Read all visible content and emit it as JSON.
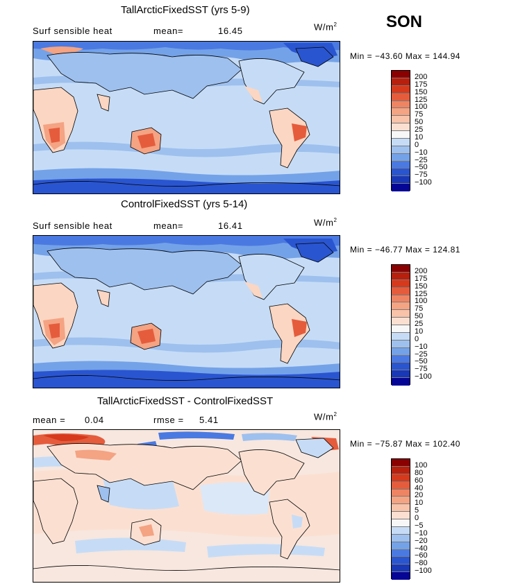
{
  "season": "SON",
  "colors": {
    "ocean_light": "#c6dcf6",
    "ocean_mid": "#9ec0ee",
    "cold_blue": "#4a79e2",
    "deep_blue": "#2a55d0",
    "warm_light": "#fbd6c2",
    "warm_mid": "#f4a383",
    "warm_strong": "#e55c3c",
    "coast": "#000000"
  },
  "panels": [
    {
      "title": "TallArcticFixedSST (yrs 5-9)",
      "left_label": "Surf sensible heat",
      "stat1_label": "mean=",
      "stat1_value": "16.45",
      "units": "W/m",
      "units_exp": "2",
      "minmax": "Min = −43.60 Max = 144.94",
      "colorbar": {
        "colors": [
          "#8b0000",
          "#b81f0c",
          "#d6391c",
          "#e55c3c",
          "#ef8463",
          "#f4a383",
          "#f8c3a9",
          "#fbe0d2",
          "#f7f7f7",
          "#c6dcf6",
          "#9ec0ee",
          "#74a2e8",
          "#4a79e2",
          "#2a55d0",
          "#1838b8",
          "#050596"
        ],
        "ticks": [
          "200",
          "175",
          "150",
          "125",
          "100",
          "75",
          "50",
          "25",
          "10",
          "0",
          "−10",
          "−25",
          "−50",
          "−75",
          "−100"
        ]
      }
    },
    {
      "title": "ControlFixedSST (yrs 5-14)",
      "left_label": "Surf sensible heat",
      "stat1_label": "mean=",
      "stat1_value": "16.41",
      "units": "W/m",
      "units_exp": "2",
      "minmax": "Min = −46.77 Max = 124.81",
      "colorbar": {
        "colors": [
          "#8b0000",
          "#b81f0c",
          "#d6391c",
          "#e55c3c",
          "#ef8463",
          "#f4a383",
          "#f8c3a9",
          "#fbe0d2",
          "#f7f7f7",
          "#c6dcf6",
          "#9ec0ee",
          "#74a2e8",
          "#4a79e2",
          "#2a55d0",
          "#1838b8",
          "#050596"
        ],
        "ticks": [
          "200",
          "175",
          "150",
          "125",
          "100",
          "75",
          "50",
          "25",
          "10",
          "0",
          "−10",
          "−25",
          "−50",
          "−75",
          "−100"
        ]
      }
    },
    {
      "title": "TallArcticFixedSST - ControlFixedSST",
      "stat1_label": "mean =",
      "stat1_value": "0.04",
      "stat2_label": "rmse =",
      "stat2_value": "5.41",
      "units": "W/m",
      "units_exp": "2",
      "minmax": "Min = −75.87 Max = 102.40",
      "colorbar": {
        "colors": [
          "#8b0000",
          "#b81f0c",
          "#d6391c",
          "#e55c3c",
          "#ef8463",
          "#f4a383",
          "#f8c3a9",
          "#fbe0d2",
          "#f7f7f7",
          "#c6dcf6",
          "#9ec0ee",
          "#74a2e8",
          "#4a79e2",
          "#2a55d0",
          "#1838b8",
          "#050596"
        ],
        "ticks": [
          "100",
          "80",
          "60",
          "40",
          "20",
          "10",
          "5",
          "0",
          "−5",
          "−10",
          "−20",
          "−40",
          "−60",
          "−80",
          "−100"
        ]
      }
    }
  ]
}
